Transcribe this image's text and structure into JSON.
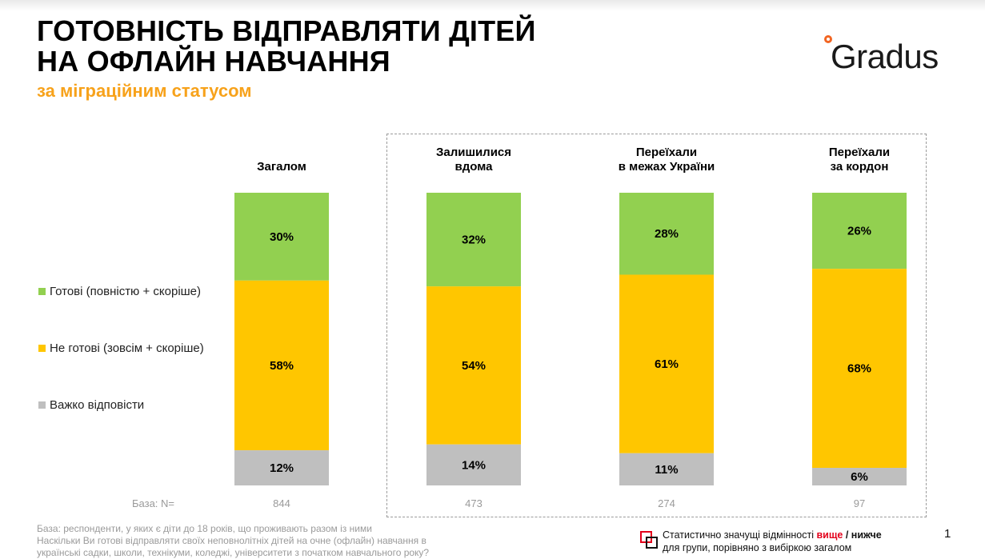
{
  "title_lines": [
    "ГОТОВНІСТЬ ВІДПРАВЛЯТИ ДІТЕЙ",
    "НА ОФЛАЙН НАВЧАННЯ"
  ],
  "subtitle": "за міграційним статусом",
  "logo_text": "Gradus",
  "colors": {
    "ready": "#92d050",
    "not_ready": "#ffc600",
    "hard": "#bfbfbf",
    "subtitle": "#f7a21b",
    "higher": "#e3001b"
  },
  "legend": [
    {
      "key": "ready",
      "label": "Готові (повністю + скоріше)"
    },
    {
      "key": "not_ready",
      "label": "Не готові (зовсім + скоріше)"
    },
    {
      "key": "hard",
      "label": "Важко відповісти"
    }
  ],
  "chart_data": {
    "type": "bar",
    "stacked": true,
    "normalized": true,
    "categories": [
      [
        "Загалом"
      ],
      [
        "Залишилися",
        "вдома"
      ],
      [
        "Переїхали",
        "в межах України"
      ],
      [
        "Переїхали",
        "за кордон"
      ]
    ],
    "series": [
      {
        "name": "Готові (повністю + скоріше)",
        "key": "ready",
        "values": [
          30,
          32,
          28,
          26
        ],
        "labels": [
          "30%",
          "32%",
          "28%",
          "26%"
        ]
      },
      {
        "name": "Не готові (зовсім + скоріше)",
        "key": "not_ready",
        "values": [
          58,
          54,
          61,
          68
        ],
        "labels": [
          "58%",
          "54%",
          "61%",
          "68%"
        ]
      },
      {
        "name": "Важко відповісти",
        "key": "hard",
        "values": [
          12,
          14,
          11,
          6
        ],
        "labels": [
          "12%",
          "14%",
          "11%",
          "6%"
        ]
      }
    ]
  },
  "base": {
    "label": "База: N=",
    "values": [
      "844",
      "473",
      "274",
      "97"
    ]
  },
  "footnote": [
    "База: респонденти, у яких є діти до 18 років, що проживають разом із ними",
    "Наскільки Ви готові відправляти своїх неповнолітніх дітей на очне (офлайн) навчання в",
    "українські садки, школи, технікуми, коледжі, університети з початком навчального року?"
  ],
  "significance": {
    "prefix": "Статистично значущі відмінності ",
    "higher": "вище",
    "separator": " / ",
    "lower": "нижче",
    "line2": "для групи, порівняно з вибіркою загалом"
  },
  "page_number": "1"
}
